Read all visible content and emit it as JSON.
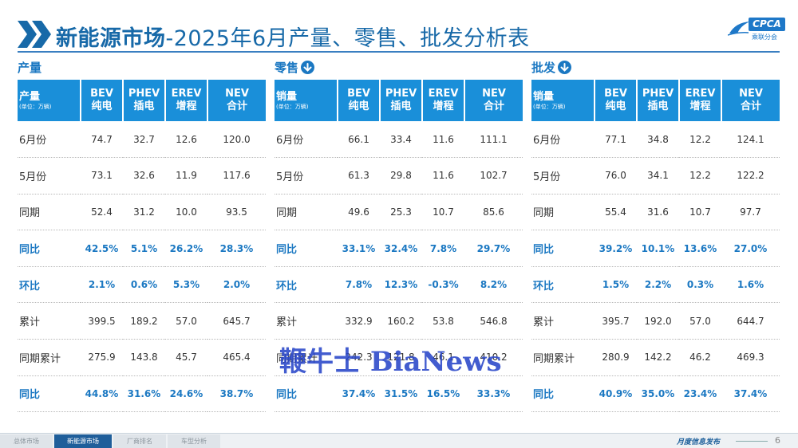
{
  "header": {
    "title_bold": "新能源市场",
    "title_rest": "-2025年6月产量、零售、批发分析表",
    "logo_text": "CPCA",
    "logo_sub": "乘联分会"
  },
  "columns": [
    {
      "top": "BEV",
      "bottom": "纯电"
    },
    {
      "top": "PHEV",
      "bottom": "插电"
    },
    {
      "top": "EREV",
      "bottom": "增程"
    },
    {
      "top": "NEV",
      "bottom": "合计"
    }
  ],
  "colors": {
    "accent": "#1a8fd9",
    "title": "#1769a8",
    "highlight": "#1b78c2"
  },
  "sections": [
    {
      "title": "产量",
      "header_label": "产量",
      "header_unit": "(单位：万辆)",
      "has_icon": false,
      "rows": [
        {
          "label": "6月份",
          "values": [
            "74.7",
            "32.7",
            "12.6",
            "120.0"
          ],
          "highlight": false
        },
        {
          "label": "5月份",
          "values": [
            "73.1",
            "32.6",
            "11.9",
            "117.6"
          ],
          "highlight": false
        },
        {
          "label": "同期",
          "values": [
            "52.4",
            "31.2",
            "10.0",
            "93.5"
          ],
          "highlight": false
        },
        {
          "label": "同比",
          "values": [
            "42.5%",
            "5.1%",
            "26.2%",
            "28.3%"
          ],
          "highlight": true
        },
        {
          "label": "环比",
          "values": [
            "2.1%",
            "0.6%",
            "5.3%",
            "2.0%"
          ],
          "highlight": true
        },
        {
          "label": "累计",
          "values": [
            "399.5",
            "189.2",
            "57.0",
            "645.7"
          ],
          "highlight": false
        },
        {
          "label": "同期累计",
          "values": [
            "275.9",
            "143.8",
            "45.7",
            "465.4"
          ],
          "highlight": false
        },
        {
          "label": "同比",
          "values": [
            "44.8%",
            "31.6%",
            "24.6%",
            "38.7%"
          ],
          "highlight": true
        }
      ]
    },
    {
      "title": "零售",
      "header_label": "销量",
      "header_unit": "(单位：万辆)",
      "has_icon": true,
      "rows": [
        {
          "label": "6月份",
          "values": [
            "66.1",
            "33.4",
            "11.6",
            "111.1"
          ],
          "highlight": false
        },
        {
          "label": "5月份",
          "values": [
            "61.3",
            "29.8",
            "11.6",
            "102.7"
          ],
          "highlight": false
        },
        {
          "label": "同期",
          "values": [
            "49.6",
            "25.3",
            "10.7",
            "85.6"
          ],
          "highlight": false
        },
        {
          "label": "同比",
          "values": [
            "33.1%",
            "32.4%",
            "7.8%",
            "29.7%"
          ],
          "highlight": true
        },
        {
          "label": "环比",
          "values": [
            "7.8%",
            "12.3%",
            "-0.3%",
            "8.2%"
          ],
          "highlight": true
        },
        {
          "label": "累计",
          "values": [
            "332.9",
            "160.2",
            "53.8",
            "546.8"
          ],
          "highlight": false
        },
        {
          "label": "同期累计",
          "values": [
            "242.3",
            "121.8",
            "46.1",
            "410.2"
          ],
          "highlight": false
        },
        {
          "label": "同比",
          "values": [
            "37.4%",
            "31.5%",
            "16.5%",
            "33.3%"
          ],
          "highlight": true
        }
      ]
    },
    {
      "title": "批发",
      "header_label": "销量",
      "header_unit": "(单位：万辆)",
      "has_icon": true,
      "rows": [
        {
          "label": "6月份",
          "values": [
            "77.1",
            "34.8",
            "12.2",
            "124.1"
          ],
          "highlight": false
        },
        {
          "label": "5月份",
          "values": [
            "76.0",
            "34.1",
            "12.2",
            "122.2"
          ],
          "highlight": false
        },
        {
          "label": "同期",
          "values": [
            "55.4",
            "31.6",
            "10.7",
            "97.7"
          ],
          "highlight": false
        },
        {
          "label": "同比",
          "values": [
            "39.2%",
            "10.1%",
            "13.6%",
            "27.0%"
          ],
          "highlight": true
        },
        {
          "label": "环比",
          "values": [
            "1.5%",
            "2.2%",
            "0.3%",
            "1.6%"
          ],
          "highlight": true
        },
        {
          "label": "累计",
          "values": [
            "395.7",
            "192.0",
            "57.0",
            "644.7"
          ],
          "highlight": false
        },
        {
          "label": "同期累计",
          "values": [
            "280.9",
            "142.2",
            "46.2",
            "469.3"
          ],
          "highlight": false
        },
        {
          "label": "同比",
          "values": [
            "40.9%",
            "35.0%",
            "23.4%",
            "37.4%"
          ],
          "highlight": true
        }
      ]
    }
  ],
  "watermark": "鞭牛士 BiaNews",
  "footer": {
    "tabs": [
      {
        "label": "总体市场",
        "active": false
      },
      {
        "label": "新能源市场",
        "active": true
      },
      {
        "label": "厂商排名",
        "active": false
      },
      {
        "label": "车型分析",
        "active": false
      }
    ],
    "text": "月度信息发布",
    "page": "6"
  }
}
